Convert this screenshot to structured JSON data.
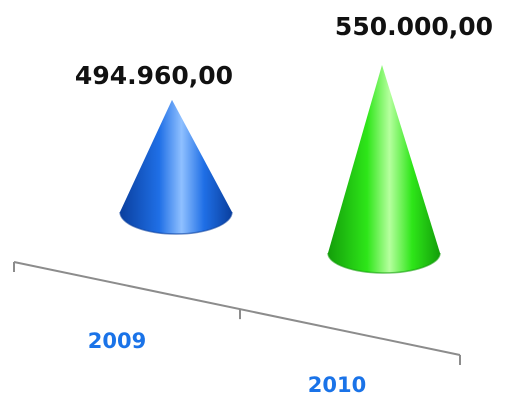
{
  "chart_data": {
    "type": "bar",
    "shape": "cone",
    "categories": [
      "2009",
      "2010"
    ],
    "values": [
      494960.0,
      550000.0
    ],
    "data_labels": [
      "494.960,00",
      "550.000,00"
    ],
    "title": "",
    "xlabel": "",
    "ylabel": "",
    "legend": "none",
    "grid": false,
    "colors": {
      "cones": [
        "#1f6fe6",
        "#2ee619"
      ],
      "cone_dark": [
        "#0a3f9e",
        "#139e0a"
      ],
      "cone_light": [
        "#8fc0ff",
        "#b6ff9e"
      ],
      "tick_labels": "#1a73e8",
      "axis": "#8c8c8c"
    }
  }
}
